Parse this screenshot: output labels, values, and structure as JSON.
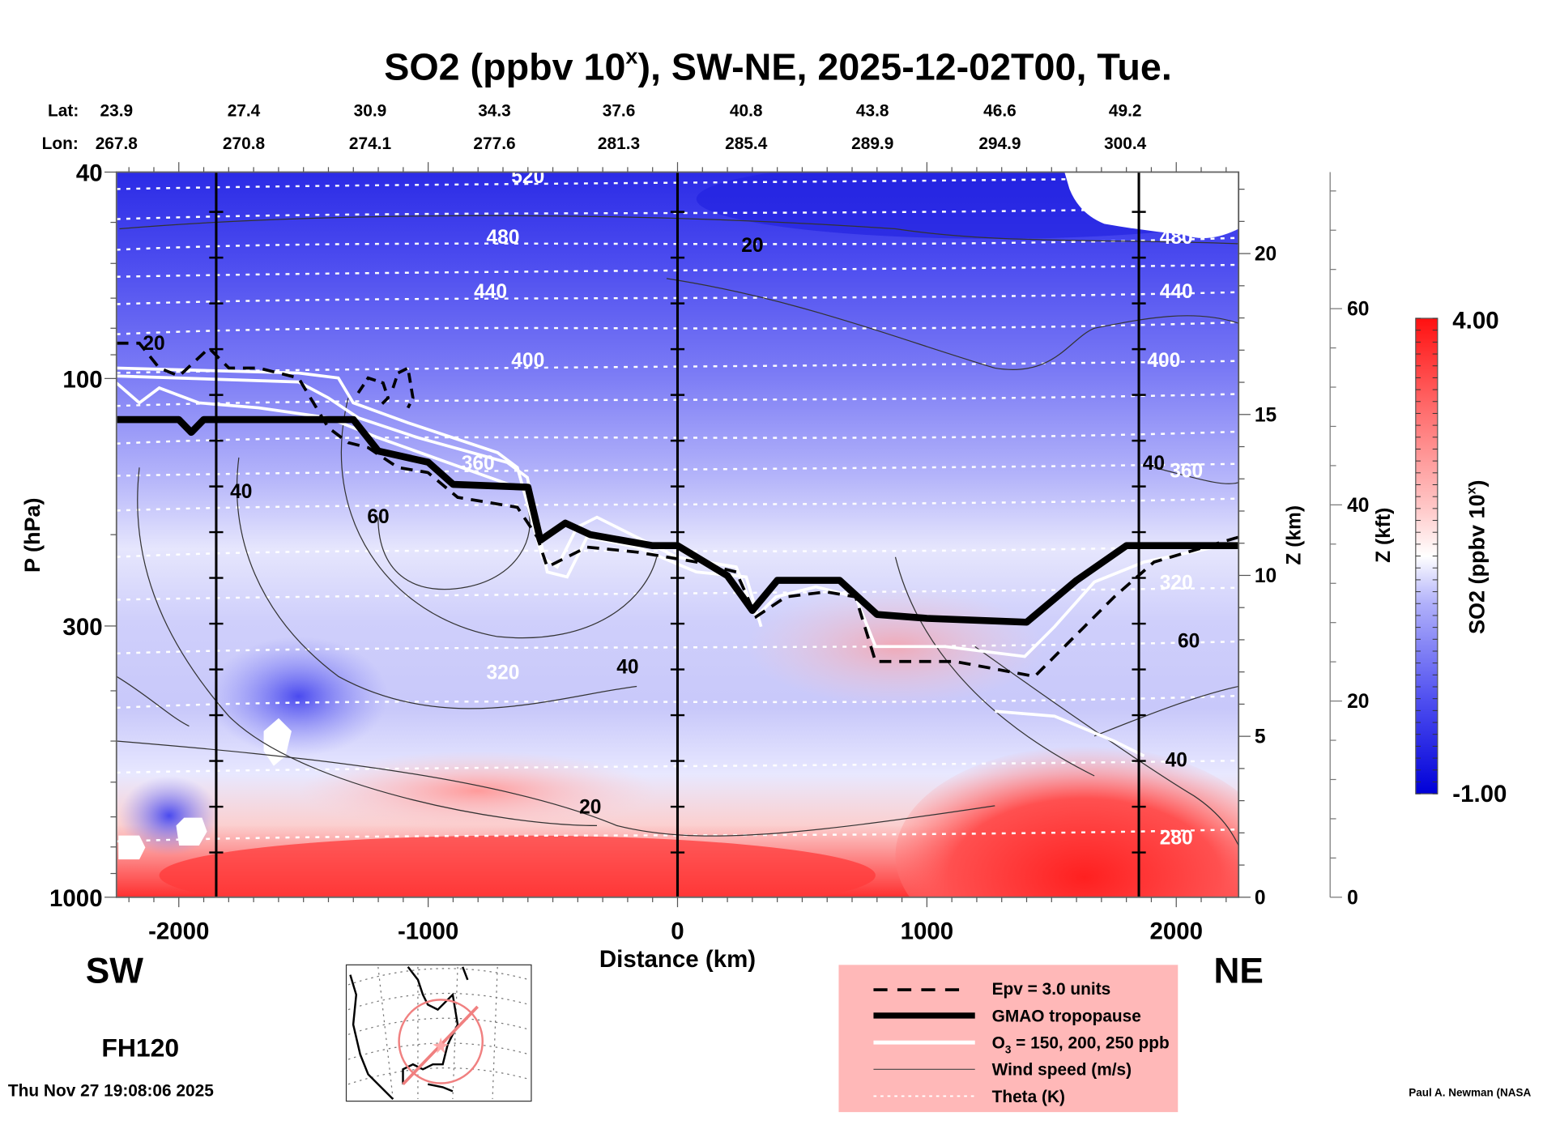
{
  "chart_data": {
    "type": "heatmap",
    "title": "SO2 (ppbv 10",
    "title_superscript": "x",
    "title_suffix": "), SW-NE, 2025-12-02T00, Tue.",
    "xlabel": "Distance (km)",
    "ylabel": "P (hPa)",
    "ylabel_right_km": "Z (km)",
    "ylabel_right_kft": "Z (kft)",
    "xlim": [
      -2250,
      2250
    ],
    "ylim": [
      1000,
      40
    ],
    "yscale": "log",
    "x_ticks": [
      -2000,
      -1000,
      0,
      1000,
      2000
    ],
    "x_tick_labels": [
      "-2000",
      "-1000",
      "0",
      "1000",
      "2000"
    ],
    "y_ticks": [
      40,
      100,
      300,
      1000
    ],
    "y_tick_labels": [
      "40",
      "100",
      "300",
      "1000"
    ],
    "z_km_ticks": [
      0,
      5,
      10,
      15,
      20
    ],
    "z_km_tick_labels": [
      "0",
      "5",
      "10",
      "15",
      "20"
    ],
    "z_kft_ticks": [
      0,
      20,
      40,
      60
    ],
    "z_kft_tick_labels": [
      "0",
      "20",
      "40",
      "60"
    ],
    "lat_label": "Lat:",
    "lon_label": "Lon:",
    "lat_values": [
      "23.9",
      "27.4",
      "30.9",
      "34.3",
      "37.6",
      "40.8",
      "43.8",
      "46.6",
      "49.2"
    ],
    "lon_values": [
      "267.8",
      "270.8",
      "274.1",
      "277.6",
      "281.3",
      "285.4",
      "289.9",
      "294.9",
      "300.4"
    ],
    "vertical_markers_km": [
      -1850,
      0,
      1850
    ],
    "colorbar": {
      "label": "SO2 (ppbv 10",
      "label_superscript": "x",
      "label_suffix": ")",
      "min": -1.0,
      "max": 4.0,
      "min_label": "-1.00",
      "max_label": "4.00",
      "low_color": "#0000e6",
      "mid_color": "#ffffff",
      "high_color": "#ff0000"
    },
    "theta_contour_labels": [
      {
        "value": "520",
        "x_km": -600,
        "p": 42
      },
      {
        "value": "480",
        "x_km": -700,
        "p": 55
      },
      {
        "value": "440",
        "x_km": -750,
        "p": 70
      },
      {
        "value": "400",
        "x_km": -600,
        "p": 95
      },
      {
        "value": "360",
        "x_km": -800,
        "p": 150
      },
      {
        "value": "320",
        "x_km": -700,
        "p": 380
      },
      {
        "value": "480",
        "x_km": 2000,
        "p": 55
      },
      {
        "value": "440",
        "x_km": 2000,
        "p": 70
      },
      {
        "value": "400",
        "x_km": 1950,
        "p": 95
      },
      {
        "value": "360",
        "x_km": 2000,
        "p": 155
      },
      {
        "value": "320",
        "x_km": 2000,
        "p": 255
      },
      {
        "value": "280",
        "x_km": 2000,
        "p": 790
      }
    ],
    "wind_contour_labels": [
      {
        "value": "20",
        "x_km": 300,
        "p": 57
      },
      {
        "value": "20",
        "x_km": -2100,
        "p": 88
      },
      {
        "value": "40",
        "x_km": -1750,
        "p": 170
      },
      {
        "value": "60",
        "x_km": -1200,
        "p": 190
      },
      {
        "value": "40",
        "x_km": 1950,
        "p": 150
      },
      {
        "value": "40",
        "x_km": -200,
        "p": 370
      },
      {
        "value": "60",
        "x_km": 2050,
        "p": 330
      },
      {
        "value": "40",
        "x_km": 2000,
        "p": 560
      },
      {
        "value": "20",
        "x_km": -350,
        "p": 690
      }
    ],
    "tropopause_p": [
      [
        -2250,
        120
      ],
      [
        -2000,
        120
      ],
      [
        -1950,
        127
      ],
      [
        -1900,
        120
      ],
      [
        -1300,
        120
      ],
      [
        -1200,
        138
      ],
      [
        -1000,
        145
      ],
      [
        -900,
        160
      ],
      [
        -600,
        162
      ],
      [
        -550,
        205
      ],
      [
        -450,
        190
      ],
      [
        -350,
        200
      ],
      [
        -100,
        210
      ],
      [
        0,
        210
      ],
      [
        200,
        240
      ],
      [
        300,
        280
      ],
      [
        400,
        245
      ],
      [
        650,
        245
      ],
      [
        800,
        285
      ],
      [
        1000,
        290
      ],
      [
        1400,
        295
      ],
      [
        1600,
        245
      ],
      [
        1800,
        210
      ],
      [
        2250,
        210
      ]
    ],
    "legend": {
      "position": "bottom-center",
      "entries": [
        {
          "label": "Epv = 3.0 units",
          "style": "dashed-black"
        },
        {
          "label": "GMAO tropopause",
          "style": "thick-black"
        },
        {
          "label_pre": "O",
          "label_sub": "3",
          "label_post": " = 150, 200, 250 ppb",
          "style": "white"
        },
        {
          "label": "Wind speed (m/s)",
          "style": "thin-gray"
        },
        {
          "label": "Theta (K)",
          "style": "dotted-white"
        }
      ]
    }
  },
  "annotations": {
    "sw": "SW",
    "ne": "NE",
    "forecast_hour": "FH120",
    "timestamp": "Thu Nov 27 19:08:06 2025",
    "credit": "Paul A. Newman (NASA"
  }
}
